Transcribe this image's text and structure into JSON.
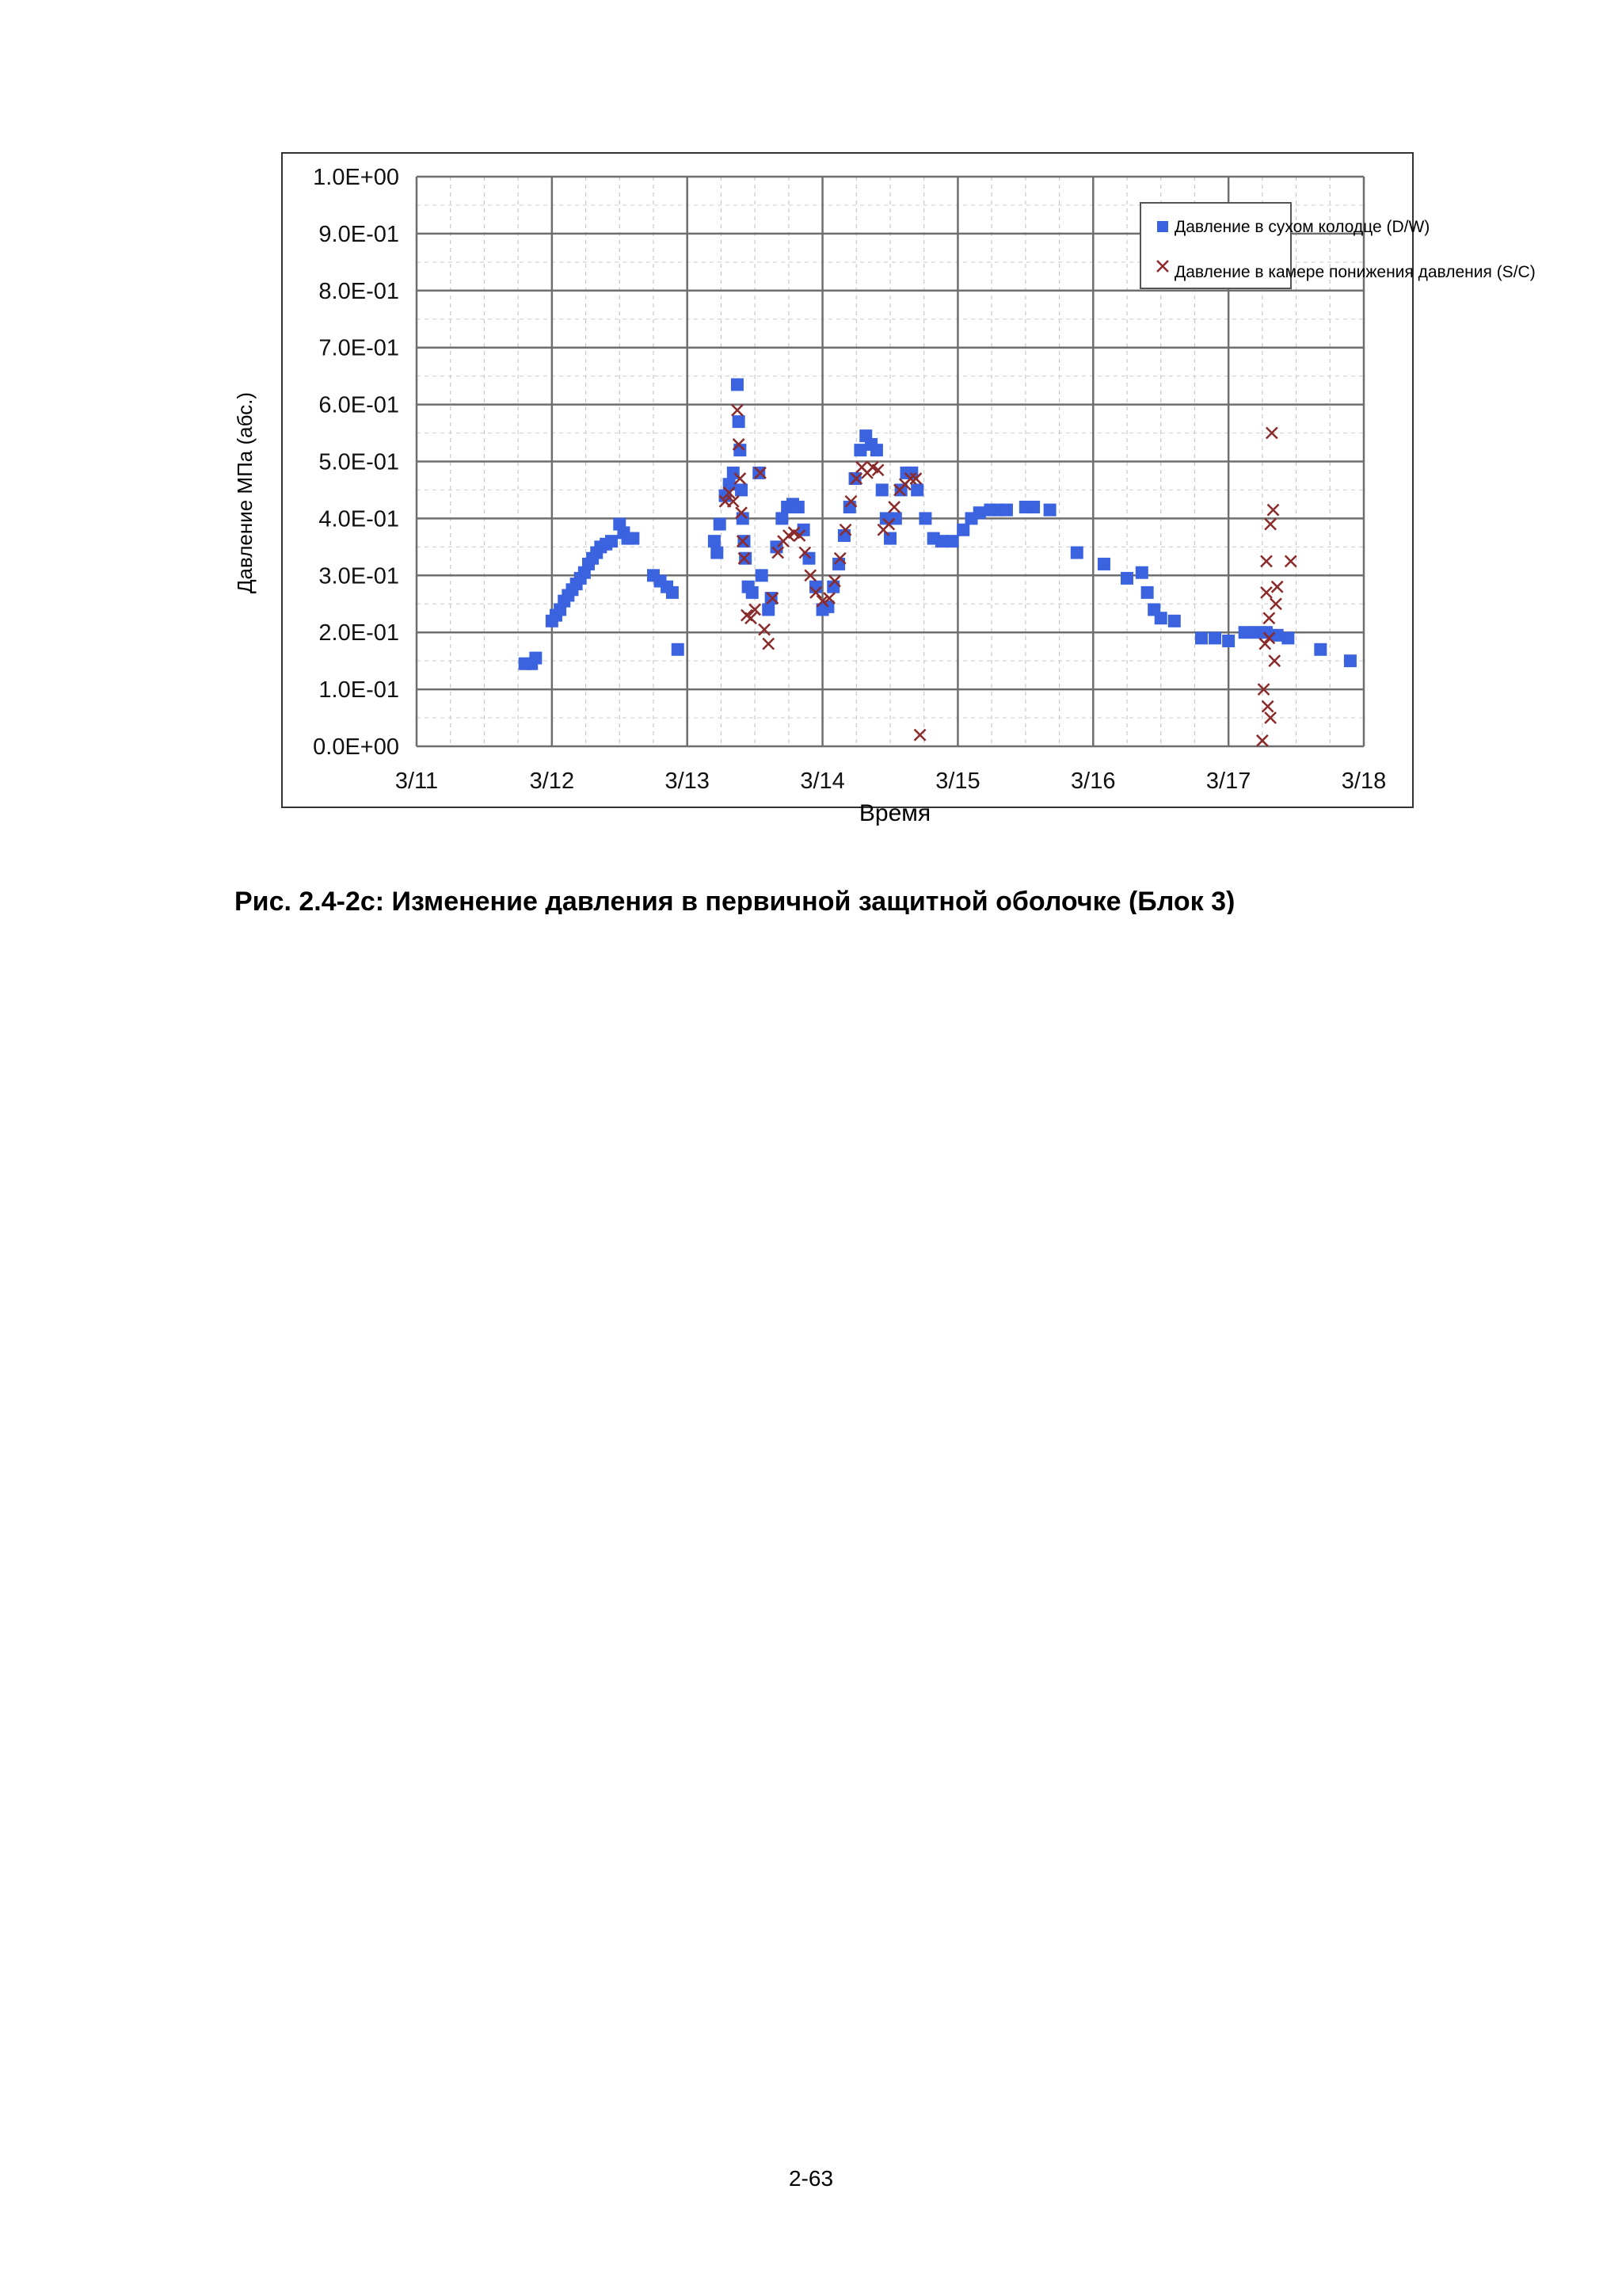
{
  "chart_data": {
    "type": "scatter",
    "title": "",
    "xlabel": "Время",
    "ylabel": "Давление МПа (абс.)",
    "x_unit": "day of March",
    "xlim": [
      11,
      18
    ],
    "ylim": [
      0,
      1.0
    ],
    "x_ticks": [
      "3/11",
      "3/12",
      "3/13",
      "3/14",
      "3/15",
      "3/16",
      "3/17",
      "3/18"
    ],
    "y_ticks": [
      "0.0E+00",
      "1.0E-01",
      "2.0E-01",
      "3.0E-01",
      "4.0E-01",
      "5.0E-01",
      "6.0E-01",
      "7.0E-01",
      "8.0E-01",
      "9.0E-01",
      "1.0E+00"
    ],
    "grid": true,
    "legend_position": "top-right",
    "series": [
      {
        "name": "Давление в сухом колодце (D/W)",
        "marker": "square",
        "color": "#3b63e0",
        "points": [
          [
            11.8,
            0.145
          ],
          [
            11.85,
            0.145
          ],
          [
            11.88,
            0.155
          ],
          [
            12.0,
            0.22
          ],
          [
            12.03,
            0.23
          ],
          [
            12.06,
            0.24
          ],
          [
            12.09,
            0.255
          ],
          [
            12.12,
            0.265
          ],
          [
            12.15,
            0.275
          ],
          [
            12.18,
            0.285
          ],
          [
            12.21,
            0.295
          ],
          [
            12.24,
            0.305
          ],
          [
            12.27,
            0.32
          ],
          [
            12.3,
            0.33
          ],
          [
            12.33,
            0.34
          ],
          [
            12.36,
            0.35
          ],
          [
            12.4,
            0.355
          ],
          [
            12.44,
            0.36
          ],
          [
            12.5,
            0.39
          ],
          [
            12.53,
            0.375
          ],
          [
            12.56,
            0.365
          ],
          [
            12.6,
            0.365
          ],
          [
            12.75,
            0.3
          ],
          [
            12.8,
            0.29
          ],
          [
            12.85,
            0.28
          ],
          [
            12.89,
            0.27
          ],
          [
            12.93,
            0.17
          ],
          [
            13.2,
            0.36
          ],
          [
            13.22,
            0.34
          ],
          [
            13.24,
            0.39
          ],
          [
            13.28,
            0.44
          ],
          [
            13.31,
            0.46
          ],
          [
            13.34,
            0.48
          ],
          [
            13.37,
            0.635
          ],
          [
            13.38,
            0.57
          ],
          [
            13.39,
            0.52
          ],
          [
            13.4,
            0.45
          ],
          [
            13.41,
            0.4
          ],
          [
            13.42,
            0.36
          ],
          [
            13.43,
            0.33
          ],
          [
            13.45,
            0.28
          ],
          [
            13.48,
            0.27
          ],
          [
            13.53,
            0.48
          ],
          [
            13.55,
            0.3
          ],
          [
            13.6,
            0.24
          ],
          [
            13.62,
            0.26
          ],
          [
            13.66,
            0.35
          ],
          [
            13.7,
            0.4
          ],
          [
            13.74,
            0.42
          ],
          [
            13.78,
            0.425
          ],
          [
            13.82,
            0.42
          ],
          [
            13.86,
            0.38
          ],
          [
            13.9,
            0.33
          ],
          [
            13.95,
            0.28
          ],
          [
            14.0,
            0.24
          ],
          [
            14.04,
            0.245
          ],
          [
            14.08,
            0.28
          ],
          [
            14.12,
            0.32
          ],
          [
            14.16,
            0.37
          ],
          [
            14.2,
            0.42
          ],
          [
            14.24,
            0.47
          ],
          [
            14.28,
            0.52
          ],
          [
            14.32,
            0.545
          ],
          [
            14.36,
            0.53
          ],
          [
            14.4,
            0.52
          ],
          [
            14.44,
            0.45
          ],
          [
            14.47,
            0.4
          ],
          [
            14.5,
            0.365
          ],
          [
            14.54,
            0.4
          ],
          [
            14.58,
            0.45
          ],
          [
            14.62,
            0.48
          ],
          [
            14.66,
            0.48
          ],
          [
            14.7,
            0.45
          ],
          [
            14.76,
            0.4
          ],
          [
            14.82,
            0.365
          ],
          [
            14.88,
            0.36
          ],
          [
            14.96,
            0.36
          ],
          [
            15.04,
            0.38
          ],
          [
            15.1,
            0.4
          ],
          [
            15.16,
            0.41
          ],
          [
            15.24,
            0.415
          ],
          [
            15.3,
            0.415
          ],
          [
            15.36,
            0.415
          ],
          [
            15.5,
            0.42
          ],
          [
            15.56,
            0.42
          ],
          [
            15.68,
            0.415
          ],
          [
            15.88,
            0.34
          ],
          [
            16.08,
            0.32
          ],
          [
            16.25,
            0.295
          ],
          [
            16.36,
            0.305
          ],
          [
            16.4,
            0.27
          ],
          [
            16.45,
            0.24
          ],
          [
            16.5,
            0.225
          ],
          [
            16.6,
            0.22
          ],
          [
            16.8,
            0.19
          ],
          [
            16.9,
            0.19
          ],
          [
            17.0,
            0.185
          ],
          [
            17.12,
            0.2
          ],
          [
            17.2,
            0.2
          ],
          [
            17.28,
            0.2
          ],
          [
            17.36,
            0.195
          ],
          [
            17.44,
            0.19
          ],
          [
            17.68,
            0.17
          ],
          [
            17.9,
            0.15
          ]
        ]
      },
      {
        "name": "Давление в камере понижения давления (S/C)",
        "marker": "x",
        "color": "#8b2a2a",
        "points": [
          [
            13.28,
            0.43
          ],
          [
            13.31,
            0.445
          ],
          [
            13.34,
            0.43
          ],
          [
            13.37,
            0.59
          ],
          [
            13.38,
            0.53
          ],
          [
            13.39,
            0.47
          ],
          [
            13.4,
            0.41
          ],
          [
            13.41,
            0.36
          ],
          [
            13.42,
            0.33
          ],
          [
            13.44,
            0.23
          ],
          [
            13.47,
            0.225
          ],
          [
            13.5,
            0.24
          ],
          [
            13.54,
            0.48
          ],
          [
            13.57,
            0.205
          ],
          [
            13.6,
            0.18
          ],
          [
            13.63,
            0.26
          ],
          [
            13.67,
            0.34
          ],
          [
            13.71,
            0.36
          ],
          [
            13.75,
            0.37
          ],
          [
            13.79,
            0.375
          ],
          [
            13.83,
            0.37
          ],
          [
            13.87,
            0.34
          ],
          [
            13.91,
            0.3
          ],
          [
            13.95,
            0.27
          ],
          [
            14.0,
            0.255
          ],
          [
            14.05,
            0.26
          ],
          [
            14.09,
            0.29
          ],
          [
            14.13,
            0.33
          ],
          [
            14.17,
            0.38
          ],
          [
            14.21,
            0.43
          ],
          [
            14.25,
            0.47
          ],
          [
            14.29,
            0.49
          ],
          [
            14.33,
            0.48
          ],
          [
            14.37,
            0.49
          ],
          [
            14.41,
            0.485
          ],
          [
            14.45,
            0.38
          ],
          [
            14.49,
            0.39
          ],
          [
            14.53,
            0.42
          ],
          [
            14.57,
            0.45
          ],
          [
            14.61,
            0.46
          ],
          [
            14.65,
            0.47
          ],
          [
            14.69,
            0.47
          ],
          [
            14.72,
            0.02
          ],
          [
            17.25,
            0.01
          ],
          [
            17.26,
            0.1
          ],
          [
            17.27,
            0.18
          ],
          [
            17.28,
            0.27
          ],
          [
            17.28,
            0.325
          ],
          [
            17.29,
            0.07
          ],
          [
            17.3,
            0.19
          ],
          [
            17.3,
            0.225
          ],
          [
            17.31,
            0.05
          ],
          [
            17.31,
            0.39
          ],
          [
            17.32,
            0.55
          ],
          [
            17.33,
            0.415
          ],
          [
            17.34,
            0.15
          ],
          [
            17.35,
            0.25
          ],
          [
            17.36,
            0.28
          ],
          [
            17.46,
            0.325
          ]
        ]
      }
    ]
  },
  "caption": "Рис. 2.4-2с: Изменение давления в первичной защитной оболочке (Блок 3)",
  "page_number": "2-63"
}
